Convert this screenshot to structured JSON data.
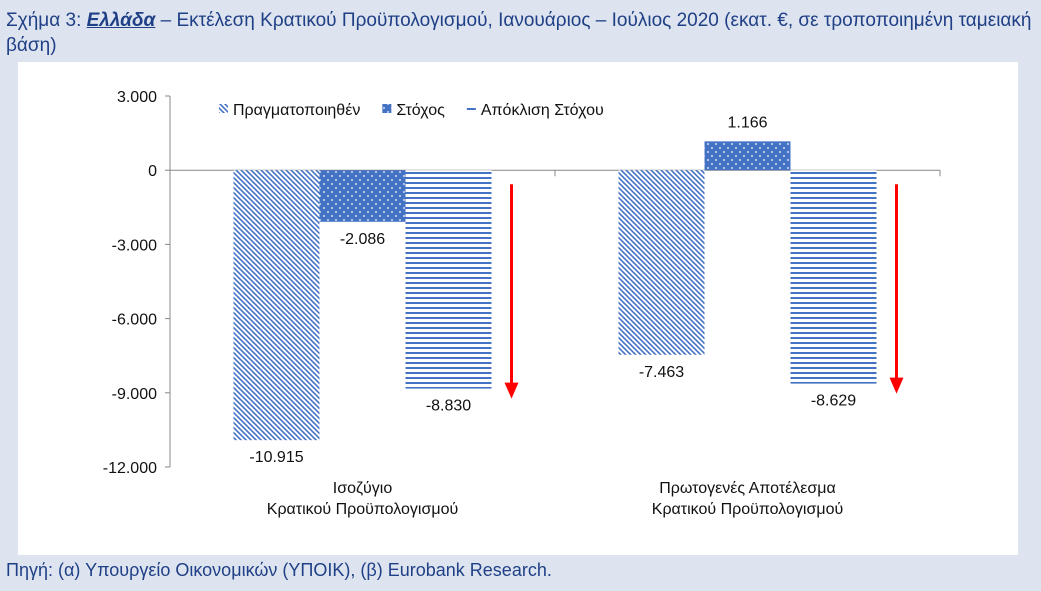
{
  "header": {
    "figure_prefix": "Σχήμα 3:",
    "country": "Ελλάδα",
    "title_rest": "– Εκτέλεση Κρατικού Προϋπολογισμού, Ιανουάριος – Ιούλιος 2020 (εκατ. €, σε τροποποιημένη ταμειακή βάση)"
  },
  "footer": {
    "source": "Πηγή: (α) Υπουργείο Οικονομικών (ΥΠΟΙΚ), (β) Eurobank Research."
  },
  "chart_data": {
    "type": "bar",
    "title": "Εκτέλεση Κρατικού Προϋπολογισμού, Ιανουάριος – Ιούλιος 2020 (εκατ. €, σε τροποποιημένη ταμειακή βάση)",
    "categories": [
      [
        "Ισοζύγιο",
        "Κρατικού Προϋπολογισμού"
      ],
      [
        "Πρωτογενές Αποτέλεσμα",
        "Κρατικού Προϋπολογισμού"
      ]
    ],
    "series": [
      {
        "name": "Πραγματοποιηθέν",
        "pattern": "diagonal",
        "values": [
          -10915,
          -7463
        ],
        "labels": [
          "-10.915",
          "-7.463"
        ]
      },
      {
        "name": "Στόχος",
        "pattern": "dots",
        "values": [
          -2086,
          1166
        ],
        "labels": [
          "-2.086",
          "1.166"
        ]
      },
      {
        "name": "Απόκλιση Στόχου",
        "pattern": "horizontal",
        "values": [
          -8830,
          -8629
        ],
        "labels": [
          "-8.830",
          "-8.629"
        ]
      }
    ],
    "ylim": [
      -12000,
      3000
    ],
    "yticks": [
      3000,
      0,
      -3000,
      -6000,
      -9000,
      -12000
    ],
    "ytick_labels": [
      "3.000",
      "0",
      "-3.000",
      "-6.000",
      "-9.000",
      "-12.000"
    ],
    "legend_position": "top",
    "annotations": [
      "red downward arrow next to each Απόκλιση Στόχου bar"
    ],
    "colors": {
      "bar": "#4472c4",
      "arrow": "#ff0000",
      "axis": "#888888"
    }
  }
}
